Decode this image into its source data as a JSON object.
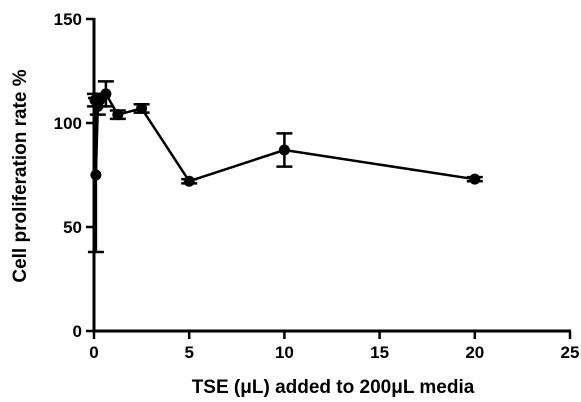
{
  "chart_data": {
    "type": "line",
    "xlabel": "TSE (μL) added to 200μL media",
    "ylabel": "Cell proliferation rate %",
    "xlim": [
      0,
      25
    ],
    "ylim": [
      0,
      150
    ],
    "x_ticks": [
      0,
      5,
      10,
      15,
      20,
      25
    ],
    "y_ticks": [
      0,
      50,
      100,
      150
    ],
    "x_tick_labels": [
      "0",
      "5",
      "10",
      "15",
      "20",
      "25"
    ],
    "y_tick_labels": [
      "0",
      "50",
      "100",
      "150"
    ],
    "grid": false,
    "legend": "none",
    "series": [
      {
        "points": [
          {
            "x": 0.05,
            "y": 111,
            "err": 3
          },
          {
            "x": 0.1,
            "y": 75,
            "err": 37
          },
          {
            "x": 0.2,
            "y": 108,
            "err": 4
          },
          {
            "x": 0.3,
            "y": 111,
            "err": 3
          },
          {
            "x": 0.625,
            "y": 114,
            "err": 6
          },
          {
            "x": 1.25,
            "y": 104,
            "err": 2
          },
          {
            "x": 2.5,
            "y": 107,
            "err": 2
          },
          {
            "x": 5,
            "y": 72,
            "err": 1
          },
          {
            "x": 10,
            "y": 87,
            "err": 8
          },
          {
            "x": 20,
            "y": 73,
            "err": 1
          }
        ]
      }
    ]
  }
}
